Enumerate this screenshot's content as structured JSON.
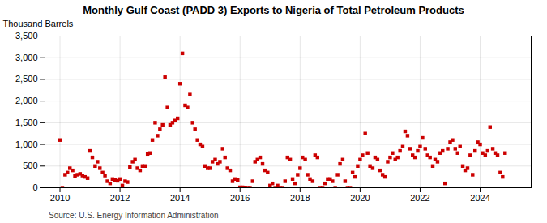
{
  "chart_data": {
    "type": "scatter",
    "title": "Monthly Gulf Coast (PADD 3) Exports to Nigeria of Total Petroleum Products",
    "ylabel": "Thousand Barrels",
    "source": "Source: U.S. Energy Information Administration",
    "color": "#cc0000",
    "marker": "square",
    "grid": true,
    "xlim": [
      2009.5,
      2025.7
    ],
    "xticks": [
      2010,
      2012,
      2014,
      2016,
      2018,
      2020,
      2022,
      2024
    ],
    "ylim": [
      0,
      3500
    ],
    "yticks": [
      0,
      500,
      {
        "value": 1000,
        "label": "1,000"
      },
      {
        "value": 1500,
        "label": "1,500"
      },
      {
        "value": 2000,
        "label": "2,000"
      },
      {
        "value": 2500,
        "label": "2,500"
      },
      {
        "value": 3000,
        "label": "3,000"
      },
      {
        "value": 3500,
        "label": "3,500"
      }
    ],
    "x": [
      2010.0,
      2010.08,
      2010.17,
      2010.25,
      2010.33,
      2010.42,
      2010.5,
      2010.58,
      2010.67,
      2010.75,
      2010.83,
      2010.92,
      2011.0,
      2011.08,
      2011.17,
      2011.25,
      2011.33,
      2011.42,
      2011.5,
      2011.58,
      2011.67,
      2011.75,
      2011.83,
      2011.92,
      2012.0,
      2012.08,
      2012.17,
      2012.25,
      2012.33,
      2012.42,
      2012.5,
      2012.58,
      2012.67,
      2012.75,
      2012.83,
      2012.92,
      2013.0,
      2013.08,
      2013.17,
      2013.25,
      2013.33,
      2013.42,
      2013.5,
      2013.58,
      2013.67,
      2013.75,
      2013.83,
      2013.92,
      2014.0,
      2014.08,
      2014.17,
      2014.25,
      2014.33,
      2014.42,
      2014.5,
      2014.58,
      2014.67,
      2014.75,
      2014.83,
      2014.92,
      2015.0,
      2015.08,
      2015.17,
      2015.25,
      2015.33,
      2015.42,
      2015.5,
      2015.58,
      2015.67,
      2015.75,
      2015.83,
      2015.92,
      2016.0,
      2016.08,
      2016.17,
      2016.25,
      2016.33,
      2016.42,
      2016.5,
      2016.58,
      2016.67,
      2016.75,
      2016.83,
      2016.92,
      2017.0,
      2017.08,
      2017.17,
      2017.25,
      2017.33,
      2017.42,
      2017.5,
      2017.58,
      2017.67,
      2017.75,
      2017.83,
      2017.92,
      2018.0,
      2018.08,
      2018.17,
      2018.25,
      2018.33,
      2018.42,
      2018.5,
      2018.58,
      2018.67,
      2018.75,
      2018.83,
      2018.92,
      2019.0,
      2019.08,
      2019.17,
      2019.25,
      2019.33,
      2019.42,
      2019.5,
      2019.58,
      2019.67,
      2019.75,
      2019.83,
      2019.92,
      2020.0,
      2020.08,
      2020.17,
      2020.25,
      2020.33,
      2020.42,
      2020.5,
      2020.58,
      2020.67,
      2020.75,
      2020.83,
      2020.92,
      2021.0,
      2021.08,
      2021.17,
      2021.25,
      2021.33,
      2021.42,
      2021.5,
      2021.58,
      2021.67,
      2021.75,
      2021.83,
      2021.92,
      2022.0,
      2022.08,
      2022.17,
      2022.25,
      2022.33,
      2022.42,
      2022.5,
      2022.58,
      2022.67,
      2022.75,
      2022.83,
      2022.92,
      2023.0,
      2023.08,
      2023.17,
      2023.25,
      2023.33,
      2023.42,
      2023.5,
      2023.58,
      2023.67,
      2023.75,
      2023.83,
      2023.92,
      2024.0,
      2024.08,
      2024.17,
      2024.25,
      2024.33,
      2024.42,
      2024.5,
      2024.58,
      2024.67,
      2024.75,
      2024.83
    ],
    "values": [
      1100,
      0,
      300,
      350,
      450,
      400,
      270,
      300,
      320,
      280,
      250,
      220,
      850,
      700,
      500,
      600,
      450,
      350,
      280,
      150,
      100,
      200,
      180,
      160,
      200,
      50,
      150,
      130,
      480,
      600,
      650,
      450,
      400,
      500,
      500,
      780,
      800,
      1100,
      1500,
      1200,
      1350,
      1450,
      2550,
      1850,
      1450,
      1500,
      1550,
      1600,
      2400,
      3100,
      1900,
      1850,
      2150,
      1500,
      1350,
      1100,
      1000,
      950,
      500,
      450,
      450,
      600,
      650,
      550,
      600,
      900,
      700,
      450,
      400,
      150,
      200,
      180,
      10,
      10,
      5,
      0,
      0,
      150,
      600,
      650,
      700,
      550,
      400,
      350,
      50,
      100,
      0,
      50,
      0,
      0,
      150,
      700,
      650,
      200,
      100,
      300,
      450,
      700,
      650,
      300,
      200,
      150,
      750,
      700,
      0,
      0,
      100,
      200,
      200,
      150,
      0,
      300,
      550,
      650,
      150,
      0,
      0,
      350,
      250,
      500,
      650,
      750,
      1250,
      800,
      500,
      450,
      700,
      650,
      400,
      300,
      250,
      600,
      700,
      800,
      650,
      700,
      850,
      950,
      1300,
      1200,
      900,
      750,
      700,
      850,
      950,
      1150,
      900,
      750,
      700,
      500,
      650,
      600,
      800,
      850,
      100,
      900,
      1050,
      1100,
      900,
      800,
      950,
      500,
      400,
      450,
      750,
      300,
      850,
      1050,
      1000,
      800,
      750,
      850,
      1400,
      900,
      800,
      750,
      350,
      250,
      800
    ]
  }
}
